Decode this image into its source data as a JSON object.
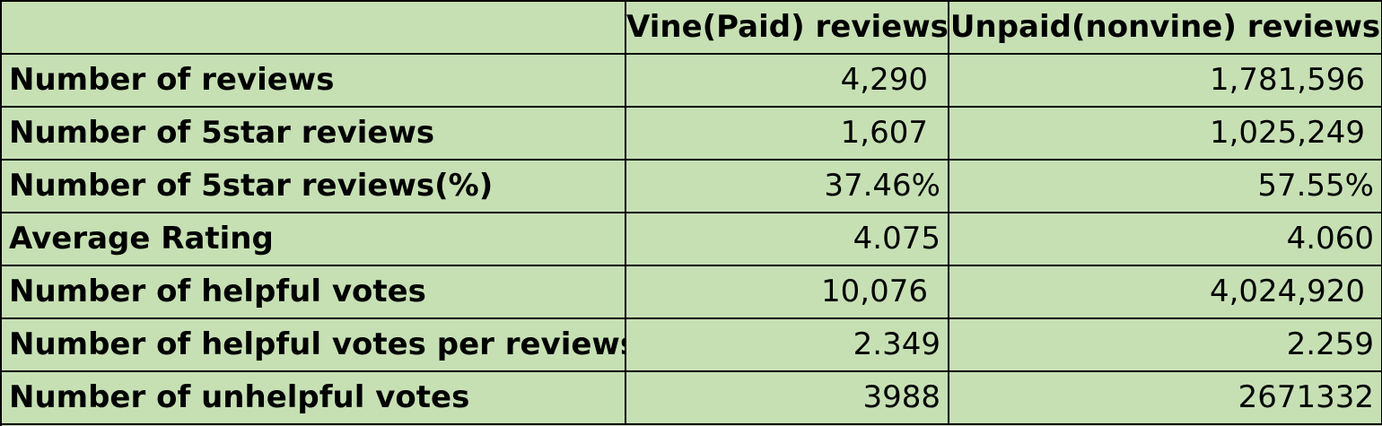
{
  "table": {
    "header": {
      "blank": "",
      "col_vine": "Vine(Paid) reviews",
      "col_unpaid": "Unpaid(nonvine) reviews"
    },
    "rows": [
      {
        "label": "Number of reviews",
        "vine": "4,290",
        "unpaid": "1,781,596"
      },
      {
        "label": "Number of 5star reviews",
        "vine": "1,607",
        "unpaid": "1,025,249"
      },
      {
        "label": "Number of 5star reviews(%)",
        "vine": "37.46%",
        "unpaid": "57.55%"
      },
      {
        "label": "Average Rating",
        "vine": "4.075",
        "unpaid": "4.060"
      },
      {
        "label": "Number of helpful votes",
        "vine": "10,076",
        "unpaid": "4,024,920"
      },
      {
        "label": "Number of helpful votes per reviews",
        "vine": "2.349",
        "unpaid": "2.259"
      },
      {
        "label": "Number of unhelpful votes",
        "vine": "3988",
        "unpaid": "2671332"
      }
    ],
    "colors": {
      "cell_fill": "#c6e0b4",
      "grid_line": "#000000"
    }
  }
}
